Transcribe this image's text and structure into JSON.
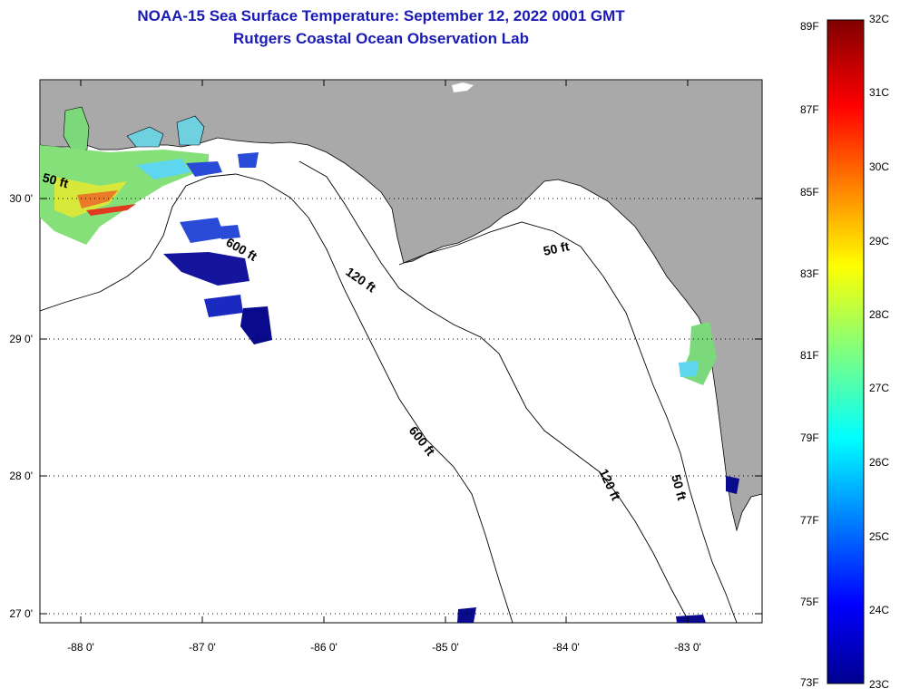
{
  "title": {
    "line1": "NOAA-15 Sea Surface Temperature:  September 12, 2022 0001 GMT",
    "line2": "Rutgers Coastal Ocean Observation Lab"
  },
  "map": {
    "y_ticks": [
      "30 0'",
      "29 0'",
      "28 0'",
      "27 0'"
    ],
    "x_ticks": [
      "-88 0'",
      "-87 0'",
      "-86 0'",
      "-85 0'",
      "-84 0'",
      "-83 0'"
    ],
    "contours": [
      "50 ft",
      "600 ft",
      "120 ft",
      "50 ft",
      "600 ft",
      "120 ft",
      "50 ft"
    ],
    "colors": {
      "land": "#a9a9a9",
      "ocean": "#ffffff",
      "title": "#1a1ab4"
    }
  },
  "colorbar": {
    "fahrenheit_labels": [
      "89F",
      "87F",
      "85F",
      "83F",
      "81F",
      "79F",
      "77F",
      "75F",
      "73F"
    ],
    "celsius_labels": [
      "32C",
      "31C",
      "30C",
      "29C",
      "28C",
      "27C",
      "26C",
      "25C",
      "24C",
      "23C"
    ]
  }
}
